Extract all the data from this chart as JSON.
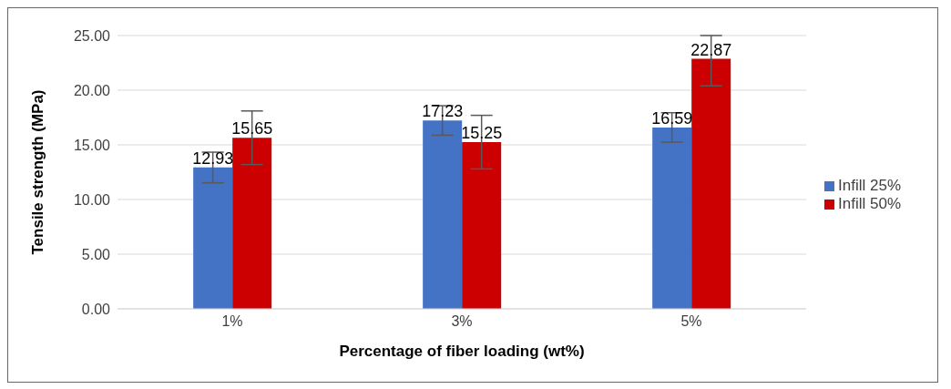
{
  "chart_data": {
    "type": "bar",
    "xlabel": "Percentage of fiber loading (wt%)",
    "ylabel": "Tensile strength (MPa)",
    "categories": [
      "1%",
      "3%",
      "5%"
    ],
    "series": [
      {
        "name": "Infill 25%",
        "color": "#4472c4",
        "values": [
          12.93,
          17.23,
          16.59
        ],
        "errors": [
          1.4,
          1.35,
          1.35
        ]
      },
      {
        "name": "Infill 50%",
        "color": "#cc0000",
        "values": [
          15.65,
          15.25,
          22.87
        ],
        "errors": [
          2.45,
          2.45,
          [
            20.4,
            25
          ]
        ]
      }
    ],
    "ylim": [
      0,
      25
    ],
    "yticks": [
      {
        "value": 0,
        "label": "0.00"
      },
      {
        "value": 5,
        "label": "5.00"
      },
      {
        "value": 10,
        "label": "10.00"
      },
      {
        "value": 15,
        "label": "15.00"
      },
      {
        "value": 20,
        "label": "20.00"
      },
      {
        "value": 25,
        "label": "25.00"
      }
    ],
    "grid": "y",
    "legend": "right",
    "data_labels": true
  }
}
